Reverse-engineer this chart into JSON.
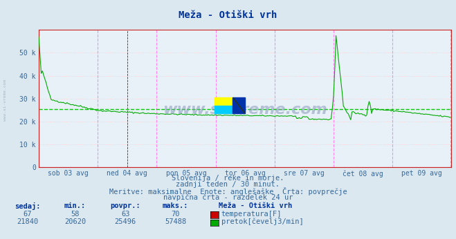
{
  "title": "Meža - Otiški vrh",
  "bg_color": "#dce8f0",
  "plot_bg_color": "#e8f0f8",
  "grid_color_h": "#ffcccc",
  "grid_color_v": "#ff88ff",
  "avg_line_color": "#00cc00",
  "avg_line_value": 25496,
  "ymax": 60000,
  "yticks": [
    0,
    10000,
    20000,
    30000,
    40000,
    50000
  ],
  "ytick_labels": [
    "0",
    "10 k",
    "20 k",
    "30 k",
    "40 k",
    "50 k"
  ],
  "xlabel_days": [
    "sob 03 avg",
    "ned 04 avg",
    "pon 05 avg",
    "tor 06 avg",
    "sre 07 avg",
    "čet 08 avg",
    "pet 09 avg"
  ],
  "n_points": 336,
  "subtitle_line1": "Slovenija / reke in morje.",
  "subtitle_line2": "zadnji teden / 30 minut.",
  "subtitle_line3": "Meritve: maksimalne  Enote: anglešaške  Črta: povprečje",
  "subtitle_line4": "navpična črta - razdelek 24 ur",
  "legend_title": "Meža - Otiški vrh",
  "temp_row": [
    67,
    58,
    63,
    70
  ],
  "flow_row": [
    21840,
    20620,
    25496,
    57488
  ],
  "temp_color": "#cc0000",
  "flow_color": "#00aa00",
  "watermark": "www.si-vreme.com",
  "sidebar_text": "www.si-vreme.com",
  "spine_color": "#cc2222",
  "text_color": "#336699",
  "header_color": "#003399"
}
